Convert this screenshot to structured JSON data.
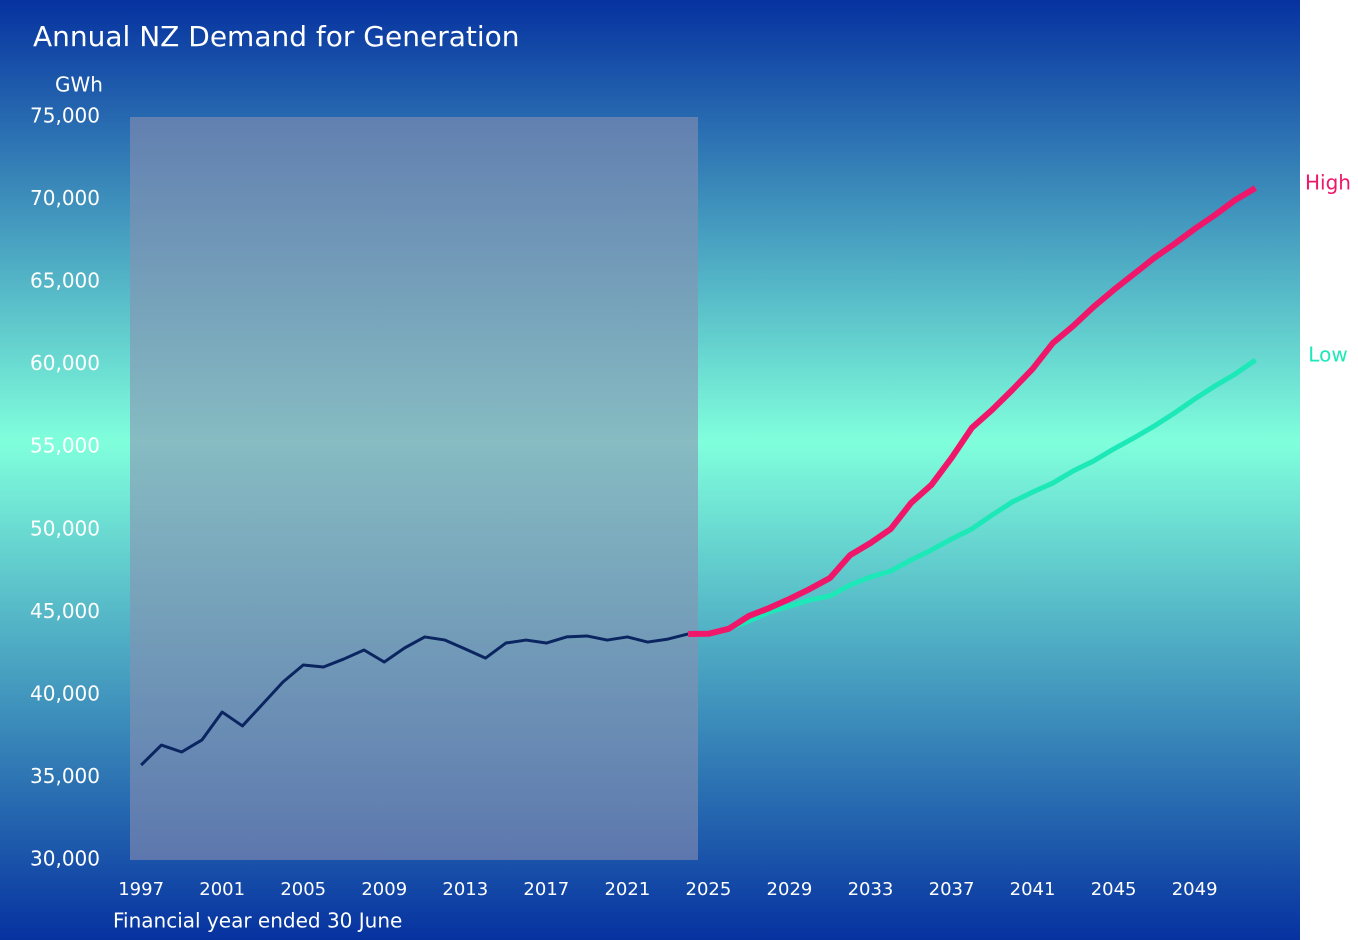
{
  "chart_data": {
    "type": "line",
    "title": "Annual NZ Demand for Generation",
    "y_label": "GWh",
    "x_label": "Financial year ended 30 June",
    "x": [
      1997,
      1998,
      1999,
      2000,
      2001,
      2002,
      2003,
      2004,
      2005,
      2006,
      2007,
      2008,
      2009,
      2010,
      2011,
      2012,
      2013,
      2014,
      2015,
      2016,
      2017,
      2018,
      2019,
      2020,
      2021,
      2022,
      2023,
      2024,
      2025,
      2026,
      2027,
      2028,
      2029,
      2030,
      2031,
      2032,
      2033,
      2034,
      2035,
      2036,
      2037,
      2038,
      2039,
      2040,
      2041,
      2042,
      2043,
      2044,
      2045,
      2046,
      2047,
      2048,
      2049,
      2050,
      2051,
      2052
    ],
    "series": [
      {
        "color": "#0b2560",
        "values": [
          35750,
          36960,
          36540,
          37270,
          38960,
          38120,
          39450,
          40780,
          41810,
          41690,
          42170,
          42720,
          41990,
          42840,
          43510,
          43320,
          42780,
          42230,
          43140,
          43320,
          43140,
          43510,
          43570,
          43320,
          43510,
          43200,
          43380,
          43690,
          null,
          null,
          null,
          null,
          null,
          null,
          null,
          null,
          null,
          null,
          null,
          null,
          null,
          null,
          null,
          null,
          null,
          null,
          null,
          null,
          null,
          null,
          null,
          null,
          null,
          null,
          null,
          null
        ]
      },
      {
        "name": "Low",
        "color": "#1de8b8",
        "values": [
          null,
          null,
          null,
          null,
          null,
          null,
          null,
          null,
          null,
          null,
          null,
          null,
          null,
          null,
          null,
          null,
          null,
          null,
          null,
          null,
          null,
          null,
          null,
          null,
          null,
          null,
          null,
          43690,
          43700,
          44000,
          44480,
          45020,
          45380,
          45750,
          45990,
          46660,
          47140,
          47500,
          48170,
          48770,
          49440,
          50050,
          50890,
          51680,
          52280,
          52830,
          53560,
          54160,
          54890,
          55560,
          56280,
          57070,
          57920,
          58710,
          59430,
          60280
        ]
      },
      {
        "name": "High",
        "color": "#f0166a",
        "values": [
          null,
          null,
          null,
          null,
          null,
          null,
          null,
          null,
          null,
          null,
          null,
          null,
          null,
          null,
          null,
          null,
          null,
          null,
          null,
          null,
          null,
          null,
          null,
          null,
          null,
          null,
          null,
          43690,
          43700,
          44000,
          44780,
          45260,
          45810,
          46410,
          47080,
          48470,
          49200,
          50050,
          51620,
          52710,
          54350,
          56170,
          57260,
          58470,
          59740,
          61310,
          62340,
          63490,
          64520,
          65490,
          66460,
          67310,
          68220,
          69060,
          69970,
          70700
        ]
      }
    ],
    "xlim": [
      1996.45,
      2054.2
    ],
    "xticks": [
      1997,
      2001,
      2005,
      2009,
      2013,
      2017,
      2021,
      2025,
      2029,
      2033,
      2037,
      2041,
      2045,
      2049
    ],
    "ylim": [
      30000,
      75000
    ],
    "yticks": [
      {
        "value": 30000,
        "label": "30,000"
      },
      {
        "value": 35000,
        "label": "35,000"
      },
      {
        "value": 40000,
        "label": "40,000"
      },
      {
        "value": 45000,
        "label": "45,000"
      },
      {
        "value": 50000,
        "label": "50,000"
      },
      {
        "value": 55000,
        "label": "55,000"
      },
      {
        "value": 60000,
        "label": "60,000"
      },
      {
        "value": 65000,
        "label": "65,000"
      },
      {
        "value": 70000,
        "label": "70,000"
      },
      {
        "value": 75000,
        "label": "75,000"
      }
    ]
  }
}
